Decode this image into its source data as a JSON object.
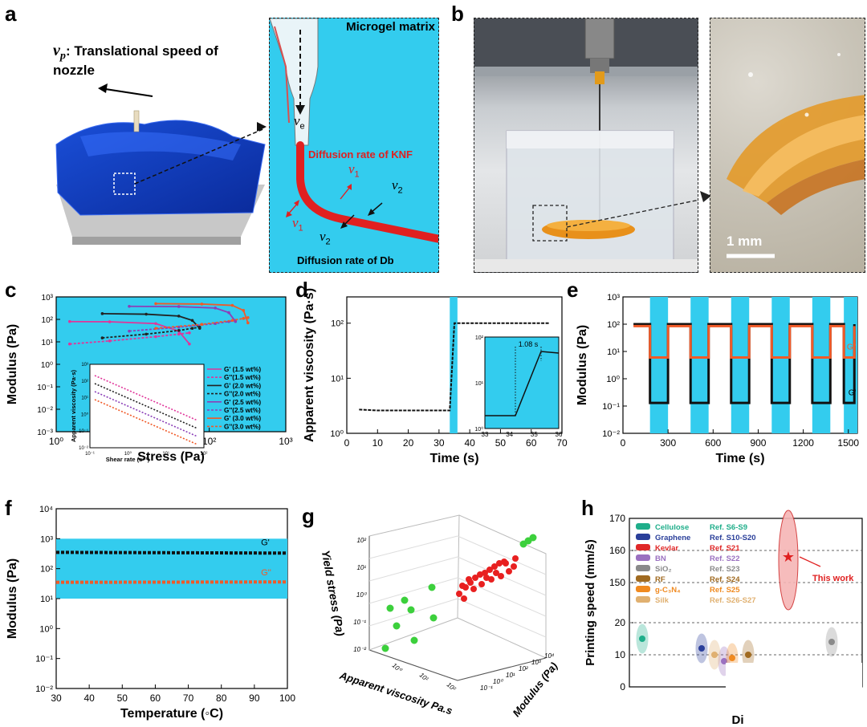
{
  "panels": {
    "a": {
      "letter": "a",
      "vp_symbol": "v",
      "vp_sub": "p",
      "vp_label": ": Translational speed of",
      "vp_label2": "nozzle",
      "inset_title": "Microgel matrix",
      "ve_symbol": "v",
      "ve_sub": "e",
      "knf_label": "Diffusion rate of KNF",
      "db_label": "Diffusion rate of Db",
      "v1_symbol": "v",
      "v1_sub": "1",
      "v2_symbol": "v",
      "v2_sub": "2"
    },
    "b": {
      "letter": "b",
      "scale_bar": "1 mm"
    },
    "c": {
      "letter": "c"
    },
    "d": {
      "letter": "d"
    },
    "e": {
      "letter": "e"
    },
    "f": {
      "letter": "f"
    },
    "g": {
      "letter": "g"
    },
    "h": {
      "letter": "h"
    }
  },
  "colors": {
    "cyan": "#33ccee",
    "red": "#e8321e",
    "black": "#000000",
    "orange": "#f05a28"
  },
  "chart_data": [
    {
      "id": "c",
      "type": "line",
      "xlabel": "Stress (Pa)",
      "ylabel": "Modulus (Pa)",
      "xscale": "log",
      "yscale": "log",
      "xlim": [
        1,
        1000
      ],
      "ylim": [
        0.001,
        1000
      ],
      "xticks": [
        "10⁰",
        "10¹",
        "10²",
        "10³"
      ],
      "yticks": [
        "10⁻³",
        "10⁻²",
        "10⁻¹",
        "10⁰",
        "10¹",
        "10²",
        "10³"
      ],
      "legend": [
        "G' (1.5 wt%)",
        "G''(1.5 wt%)",
        "G' (2.0 wt%)",
        "G''(2.0 wt%)",
        "G' (2.5 wt%)",
        "G''(2.5 wt%)",
        "G' (3.0 wt%)",
        "G''(3.0 wt%)"
      ],
      "series": [
        {
          "name": "G' (1.5 wt%)",
          "color": "#e0359a",
          "x": [
            1.5,
            5,
            20,
            40,
            55
          ],
          "y": [
            80,
            78,
            65,
            30,
            8
          ]
        },
        {
          "name": "G''(1.5 wt%)",
          "color": "#e0359a",
          "x": [
            1.5,
            5,
            20,
            40,
            55
          ],
          "y": [
            8,
            11,
            17,
            22,
            25
          ]
        },
        {
          "name": "G' (2.0 wt%)",
          "color": "#222222",
          "x": [
            4,
            15,
            40,
            60,
            75
          ],
          "y": [
            180,
            170,
            140,
            90,
            40
          ]
        },
        {
          "name": "G''(2.0 wt%)",
          "color": "#222222",
          "x": [
            4,
            15,
            40,
            60,
            75
          ],
          "y": [
            15,
            22,
            32,
            40,
            45
          ]
        },
        {
          "name": "G' (2.5 wt%)",
          "color": "#8b3fb8",
          "x": [
            9,
            40,
            120,
            180,
            220
          ],
          "y": [
            380,
            370,
            320,
            200,
            80
          ]
        },
        {
          "name": "G''(2.5 wt%)",
          "color": "#8b3fb8",
          "x": [
            9,
            40,
            120,
            180,
            220
          ],
          "y": [
            30,
            45,
            65,
            80,
            90
          ]
        },
        {
          "name": "G' (3.0 wt%)",
          "color": "#f05a28",
          "x": [
            20,
            80,
            200,
            280,
            320
          ],
          "y": [
            500,
            480,
            420,
            250,
            70
          ]
        },
        {
          "name": "G''(3.0 wt%)",
          "color": "#f05a28",
          "x": [
            20,
            80,
            200,
            280,
            320
          ],
          "y": [
            40,
            60,
            90,
            110,
            120
          ]
        }
      ],
      "inset": {
        "xlabel": "Shear rate (s⁻¹)",
        "ylabel": "Apparent viscosity (Pa·s)",
        "xticks": [
          "10⁻¹",
          "10⁰",
          "10¹",
          "10²"
        ],
        "yticks": [
          "10⁻²",
          "10⁻¹",
          "10⁰",
          "10¹",
          "10²",
          "10³"
        ]
      }
    },
    {
      "id": "d",
      "type": "line",
      "xlabel": "Time (s)",
      "ylabel": "Apparent viscosity (Pa·s)",
      "xlim": [
        0,
        70
      ],
      "ylim": [
        1,
        300
      ],
      "xticks": [
        "0",
        "10",
        "20",
        "30",
        "40",
        "50",
        "60",
        "70"
      ],
      "yticks": [
        "10⁰",
        "10¹",
        "10²"
      ],
      "x": [
        4,
        10,
        20,
        30,
        33.5,
        35,
        36,
        45,
        55,
        66
      ],
      "y": [
        2.7,
        2.6,
        2.6,
        2.6,
        2.6,
        100,
        100,
        100,
        100,
        100
      ],
      "highlight": [
        33.5,
        36
      ],
      "inset": {
        "annotation": "1.08 s",
        "xticks": [
          "33",
          "34",
          "35",
          "36"
        ],
        "yticks": [
          "10⁰",
          "10¹",
          "10²"
        ]
      }
    },
    {
      "id": "e",
      "type": "line",
      "xlabel": "Time (s)",
      "ylabel": "Modulus (Pa)",
      "xlim": [
        0,
        1560
      ],
      "ylim": [
        0.01,
        1000
      ],
      "xticks": [
        "0",
        "300",
        "600",
        "900",
        "1200",
        "1500"
      ],
      "yticks": [
        "10⁻²",
        "10⁻¹",
        "10⁰",
        "10¹",
        "10²",
        "10³"
      ],
      "labels": [
        "G''",
        "G'"
      ],
      "high_shear_intervals": [
        [
          180,
          300
        ],
        [
          450,
          570
        ],
        [
          720,
          840
        ],
        [
          990,
          1110
        ],
        [
          1260,
          1380
        ],
        [
          1470,
          1560
        ]
      ],
      "series": [
        {
          "name": "G'",
          "low_shear": 100,
          "high_shear": 0.13
        },
        {
          "name": "G''",
          "low_shear": 85,
          "high_shear": 6
        }
      ]
    },
    {
      "id": "f",
      "type": "line",
      "xlabel": "Temperature (◦C)",
      "ylabel": "Modulus (Pa)",
      "xlim": [
        30,
        100
      ],
      "ylim": [
        0.01,
        10000
      ],
      "xticks": [
        "30",
        "40",
        "50",
        "60",
        "70",
        "80",
        "90",
        "100"
      ],
      "yticks": [
        "10⁻²",
        "10⁻¹",
        "10⁰",
        "10¹",
        "10²",
        "10³",
        "10⁴"
      ],
      "labels": [
        "G'",
        "G''"
      ],
      "series": [
        {
          "name": "G'",
          "color": "#111111",
          "x": [
            30,
            100
          ],
          "y": [
            350,
            330
          ]
        },
        {
          "name": "G''",
          "color": "#f05a28",
          "x": [
            30,
            100
          ],
          "y": [
            35,
            36
          ]
        }
      ]
    },
    {
      "id": "g",
      "type": "scatter",
      "xlabel": "Apparent viscosity  Pa.s",
      "ylabel": "Yield stress (Pa)",
      "zlabel": "Modulus (Pa)",
      "x_ticks": [
        "10⁰",
        "10¹",
        "10²"
      ],
      "y_ticks": [
        "10⁻²",
        "10⁻¹",
        "10⁰",
        "10¹",
        "10²"
      ],
      "z_ticks": [
        "10⁻¹",
        "10⁰",
        "10¹",
        "10²",
        "10³",
        "10⁴"
      ]
    },
    {
      "id": "h",
      "type": "scatter",
      "xlabel": "Di",
      "ylabel": "Printing speed (mm/s)",
      "yticks": [
        "0",
        "10",
        "20",
        "150",
        "160",
        "170"
      ],
      "annotation": "This work",
      "legend": [
        {
          "material": "Cellulose",
          "ref": "Ref. S6-S9",
          "color": "#1fae8a",
          "value": 15
        },
        {
          "material": "Graphene",
          "ref": "Ref. S10-S20",
          "color": "#2a3f9a",
          "value": 12
        },
        {
          "material": "Kevlar",
          "ref": "Ref. S21",
          "color": "#e02828",
          "value": 158
        },
        {
          "material": "BN",
          "ref": "Ref. S22",
          "color": "#9a70c0",
          "value": 8
        },
        {
          "material": "SiO₂",
          "ref": "Ref. S23",
          "color": "#8a8a8a",
          "value": 14
        },
        {
          "material": "RF",
          "ref": "Ref. S24",
          "color": "#a06a20",
          "value": 10
        },
        {
          "material": "g-C₃N₄",
          "ref": "Ref. S25",
          "color": "#f08a20",
          "value": 9
        },
        {
          "material": "Silk",
          "ref": "Ref. S26-S27",
          "color": "#e0b070",
          "value": 10
        }
      ]
    }
  ]
}
